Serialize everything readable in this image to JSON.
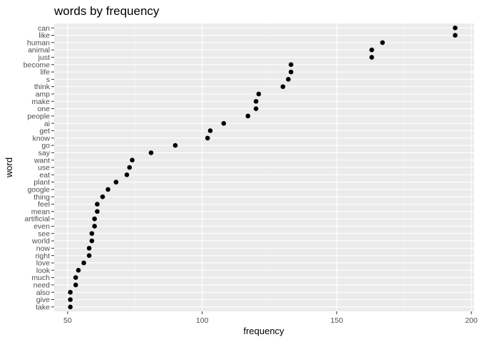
{
  "chart_data": {
    "type": "scatter",
    "title": "words by frequency",
    "xlabel": "frequency",
    "ylabel": "word",
    "xlim": [
      45,
      201
    ],
    "x_ticks": [
      50,
      100,
      150,
      200
    ],
    "x_minor_ticks": [
      75,
      125,
      175
    ],
    "grid": true,
    "legend": "none",
    "point_color": "#000000",
    "panel_color": "#ebebeb",
    "categories": [
      "can",
      "like",
      "human",
      "animal",
      "just",
      "become",
      "life",
      "s",
      "think",
      "amp",
      "make",
      "one",
      "people",
      "ai",
      "get",
      "know",
      "go",
      "say",
      "want",
      "use",
      "eat",
      "plant",
      "google",
      "thing",
      "feel",
      "mean",
      "artificial",
      "even",
      "see",
      "world",
      "now",
      "right",
      "love",
      "look",
      "much",
      "need",
      "also",
      "give",
      "take"
    ],
    "values": [
      194,
      194,
      167,
      163,
      163,
      133,
      133,
      132,
      130,
      121,
      120,
      120,
      117,
      108,
      103,
      102,
      90,
      81,
      74,
      73,
      72,
      68,
      65,
      63,
      61,
      61,
      60,
      60,
      59,
      59,
      58,
      58,
      56,
      54,
      53,
      53,
      51,
      51,
      51
    ]
  }
}
